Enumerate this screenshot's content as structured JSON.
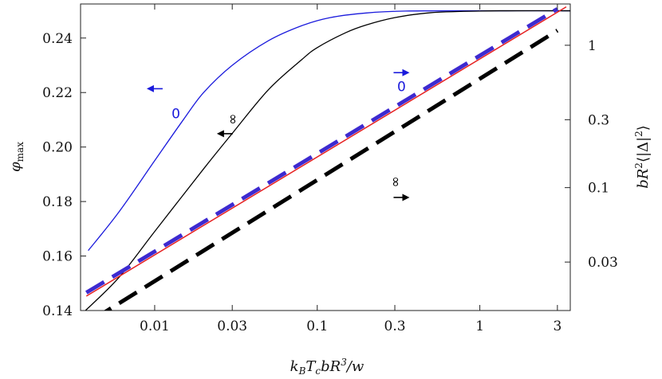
{
  "chart_data": {
    "type": "line",
    "xlabel": "k_B T_c b R^3 / w",
    "ylabel_left": "φ_max",
    "ylabel_right": "bR²⟨|Δ|²⟩",
    "x_scale": "log",
    "xlim": [
      0.0035,
      3.6
    ],
    "x_ticks": [
      {
        "value": 0.01,
        "label": "0.01"
      },
      {
        "value": 0.03,
        "label": "0.03"
      },
      {
        "value": 0.1,
        "label": "0.1"
      },
      {
        "value": 0.3,
        "label": "0.3"
      },
      {
        "value": 1,
        "label": "1"
      },
      {
        "value": 3,
        "label": "3"
      }
    ],
    "y_left": {
      "scale": "linear",
      "lim": [
        0.14,
        0.2525
      ],
      "ticks": [
        {
          "value": 0.14,
          "label": "0.14"
        },
        {
          "value": 0.16,
          "label": "0.16"
        },
        {
          "value": 0.18,
          "label": "0.18"
        },
        {
          "value": 0.2,
          "label": "0.20"
        },
        {
          "value": 0.22,
          "label": "0.22"
        },
        {
          "value": 0.24,
          "label": "0.24"
        }
      ]
    },
    "y_right": {
      "scale": "log",
      "lim": [
        0.0137,
        1.95
      ],
      "ticks": [
        {
          "value": 0.03,
          "label": "0.03"
        },
        {
          "value": 0.1,
          "label": "0.1"
        },
        {
          "value": 0.3,
          "label": "0.3"
        },
        {
          "value": 1,
          "label": "1"
        }
      ]
    },
    "series": [
      {
        "axis": "left",
        "color": "#1a1adc",
        "style": "solid",
        "width": 1.3,
        "points": [
          [
            0.0039,
            0.162
          ],
          [
            0.006,
            0.176
          ],
          [
            0.01,
            0.195
          ],
          [
            0.015,
            0.21
          ],
          [
            0.02,
            0.22
          ],
          [
            0.03,
            0.23
          ],
          [
            0.05,
            0.239
          ],
          [
            0.08,
            0.2445
          ],
          [
            0.12,
            0.2475
          ],
          [
            0.2,
            0.2492
          ],
          [
            0.35,
            0.2499
          ],
          [
            1,
            0.25
          ],
          [
            3.6,
            0.25
          ]
        ]
      },
      {
        "axis": "left",
        "color": "#000000",
        "style": "solid",
        "width": 1.3,
        "points": [
          [
            0.0035,
            0.1383
          ],
          [
            0.006,
            0.152
          ],
          [
            0.01,
            0.169
          ],
          [
            0.02,
            0.192
          ],
          [
            0.03,
            0.205
          ],
          [
            0.05,
            0.221
          ],
          [
            0.08,
            0.232
          ],
          [
            0.1,
            0.2365
          ],
          [
            0.15,
            0.242
          ],
          [
            0.2,
            0.2448
          ],
          [
            0.3,
            0.2475
          ],
          [
            0.5,
            0.2493
          ],
          [
            1,
            0.2499
          ],
          [
            1.5,
            0.25
          ],
          [
            3.6,
            0.25
          ]
        ]
      },
      {
        "axis": "right",
        "color": "#e62020",
        "style": "solid",
        "width": 1.5,
        "points": [
          [
            0.0038,
            0.0173
          ],
          [
            3.4,
            1.86
          ]
        ]
      },
      {
        "axis": "right",
        "color": "#3d2ad0",
        "style": "dashed",
        "width": 5,
        "points": [
          [
            0.0038,
            0.0183
          ],
          [
            3.0,
            1.8
          ]
        ]
      },
      {
        "axis": "right",
        "color": "#000000",
        "style": "dashed",
        "width": 5,
        "points": [
          [
            0.0042,
            0.0119
          ],
          [
            3.0,
            1.27
          ]
        ]
      }
    ],
    "annotations": [
      {
        "text": "0",
        "color": "#1a1adc",
        "x": 0.0135,
        "y_left": 0.2105
      },
      {
        "text": "0",
        "color": "#1a1adc",
        "x": 0.33,
        "y_left": 0.2205
      },
      {
        "text": "∞",
        "color": "#000000",
        "x": 0.03,
        "y_left": 0.2085,
        "rotate": -90
      },
      {
        "text": "∞",
        "color": "#000000",
        "x": 0.3,
        "y_left": 0.1855,
        "rotate": -90
      }
    ],
    "arrows": [
      {
        "direction": "left",
        "color": "#1a1adc",
        "x": 0.01,
        "y_left": 0.2214
      },
      {
        "direction": "right",
        "color": "#1a1adc",
        "x": 0.33,
        "y_left": 0.2273
      },
      {
        "direction": "left",
        "color": "#000000",
        "x": 0.027,
        "y_left": 0.2049
      },
      {
        "direction": "right",
        "color": "#000000",
        "x": 0.33,
        "y_left": 0.1815
      }
    ]
  }
}
